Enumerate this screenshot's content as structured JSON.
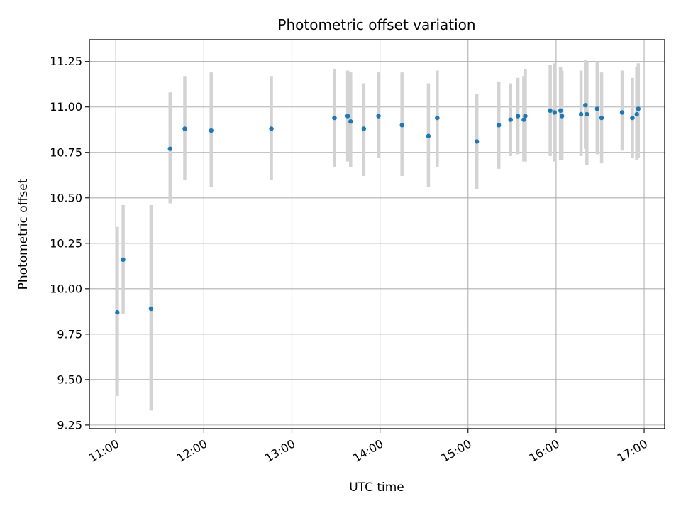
{
  "chart_data": {
    "type": "scatter",
    "title": "Photometric offset variation",
    "xlabel": "UTC time",
    "ylabel": "Photometric offset",
    "x_tick_labels": [
      "11:00",
      "12:00",
      "13:00",
      "14:00",
      "15:00",
      "16:00",
      "17:00"
    ],
    "x_ticks": [
      "11:00",
      "12:00",
      "13:00",
      "14:00",
      "15:00",
      "16:00",
      "17:00"
    ],
    "xlim": [
      "10:42",
      "17:14"
    ],
    "y_ticks": [
      9.25,
      9.5,
      9.75,
      10.0,
      10.25,
      10.5,
      10.75,
      11.0,
      11.25
    ],
    "y_tick_labels": [
      "9.25",
      "9.50",
      "9.75",
      "10.00",
      "10.25",
      "10.50",
      "10.75",
      "11.00",
      "11.25"
    ],
    "ylim": [
      9.23,
      11.37
    ],
    "grid": true,
    "legend": "none",
    "colors": {
      "marker": "#1f77b4",
      "errorbar": "#d3d3d3",
      "grid": "#b0b0b0"
    },
    "points": [
      {
        "t": "11:01",
        "y": 9.87,
        "lo": 9.41,
        "hi": 10.34
      },
      {
        "t": "11:05",
        "y": 10.16,
        "lo": 9.86,
        "hi": 10.46
      },
      {
        "t": "11:24",
        "y": 9.89,
        "lo": 9.33,
        "hi": 10.46
      },
      {
        "t": "11:37",
        "y": 10.77,
        "lo": 10.47,
        "hi": 11.08
      },
      {
        "t": "11:47",
        "y": 10.88,
        "lo": 10.6,
        "hi": 11.17
      },
      {
        "t": "12:05",
        "y": 10.87,
        "lo": 10.56,
        "hi": 11.19
      },
      {
        "t": "12:46",
        "y": 10.88,
        "lo": 10.6,
        "hi": 11.17
      },
      {
        "t": "13:29",
        "y": 10.94,
        "lo": 10.67,
        "hi": 11.21
      },
      {
        "t": "13:38",
        "y": 10.95,
        "lo": 10.7,
        "hi": 11.2
      },
      {
        "t": "13:40",
        "y": 10.92,
        "lo": 10.67,
        "hi": 11.19
      },
      {
        "t": "13:49",
        "y": 10.88,
        "lo": 10.62,
        "hi": 11.13
      },
      {
        "t": "13:59",
        "y": 10.95,
        "lo": 10.72,
        "hi": 11.19
      },
      {
        "t": "14:15",
        "y": 10.9,
        "lo": 10.62,
        "hi": 11.19
      },
      {
        "t": "14:33",
        "y": 10.84,
        "lo": 10.56,
        "hi": 11.13
      },
      {
        "t": "14:39",
        "y": 10.94,
        "lo": 10.67,
        "hi": 11.2
      },
      {
        "t": "15:06",
        "y": 10.81,
        "lo": 10.55,
        "hi": 11.07
      },
      {
        "t": "15:21",
        "y": 10.9,
        "lo": 10.66,
        "hi": 11.14
      },
      {
        "t": "15:29",
        "y": 10.93,
        "lo": 10.73,
        "hi": 11.13
      },
      {
        "t": "15:34",
        "y": 10.95,
        "lo": 10.74,
        "hi": 11.16
      },
      {
        "t": "15:38",
        "y": 10.93,
        "lo": 10.7,
        "hi": 11.17
      },
      {
        "t": "15:39",
        "y": 10.95,
        "lo": 10.7,
        "hi": 11.21
      },
      {
        "t": "15:56",
        "y": 10.98,
        "lo": 10.73,
        "hi": 11.23
      },
      {
        "t": "15:59",
        "y": 10.97,
        "lo": 10.7,
        "hi": 11.24
      },
      {
        "t": "16:03",
        "y": 10.98,
        "lo": 10.71,
        "hi": 11.22
      },
      {
        "t": "16:04",
        "y": 10.95,
        "lo": 10.71,
        "hi": 11.2
      },
      {
        "t": "16:17",
        "y": 10.96,
        "lo": 10.73,
        "hi": 11.2
      },
      {
        "t": "16:20",
        "y": 11.01,
        "lo": 10.77,
        "hi": 11.26
      },
      {
        "t": "16:21",
        "y": 10.96,
        "lo": 10.68,
        "hi": 11.25
      },
      {
        "t": "16:28",
        "y": 10.99,
        "lo": 10.74,
        "hi": 11.25
      },
      {
        "t": "16:31",
        "y": 10.94,
        "lo": 10.69,
        "hi": 11.19
      },
      {
        "t": "16:45",
        "y": 10.97,
        "lo": 10.76,
        "hi": 11.2
      },
      {
        "t": "16:52",
        "y": 10.94,
        "lo": 10.72,
        "hi": 11.16
      },
      {
        "t": "16:55",
        "y": 10.96,
        "lo": 10.71,
        "hi": 11.22
      },
      {
        "t": "16:56",
        "y": 10.99,
        "lo": 10.72,
        "hi": 11.24
      }
    ]
  }
}
